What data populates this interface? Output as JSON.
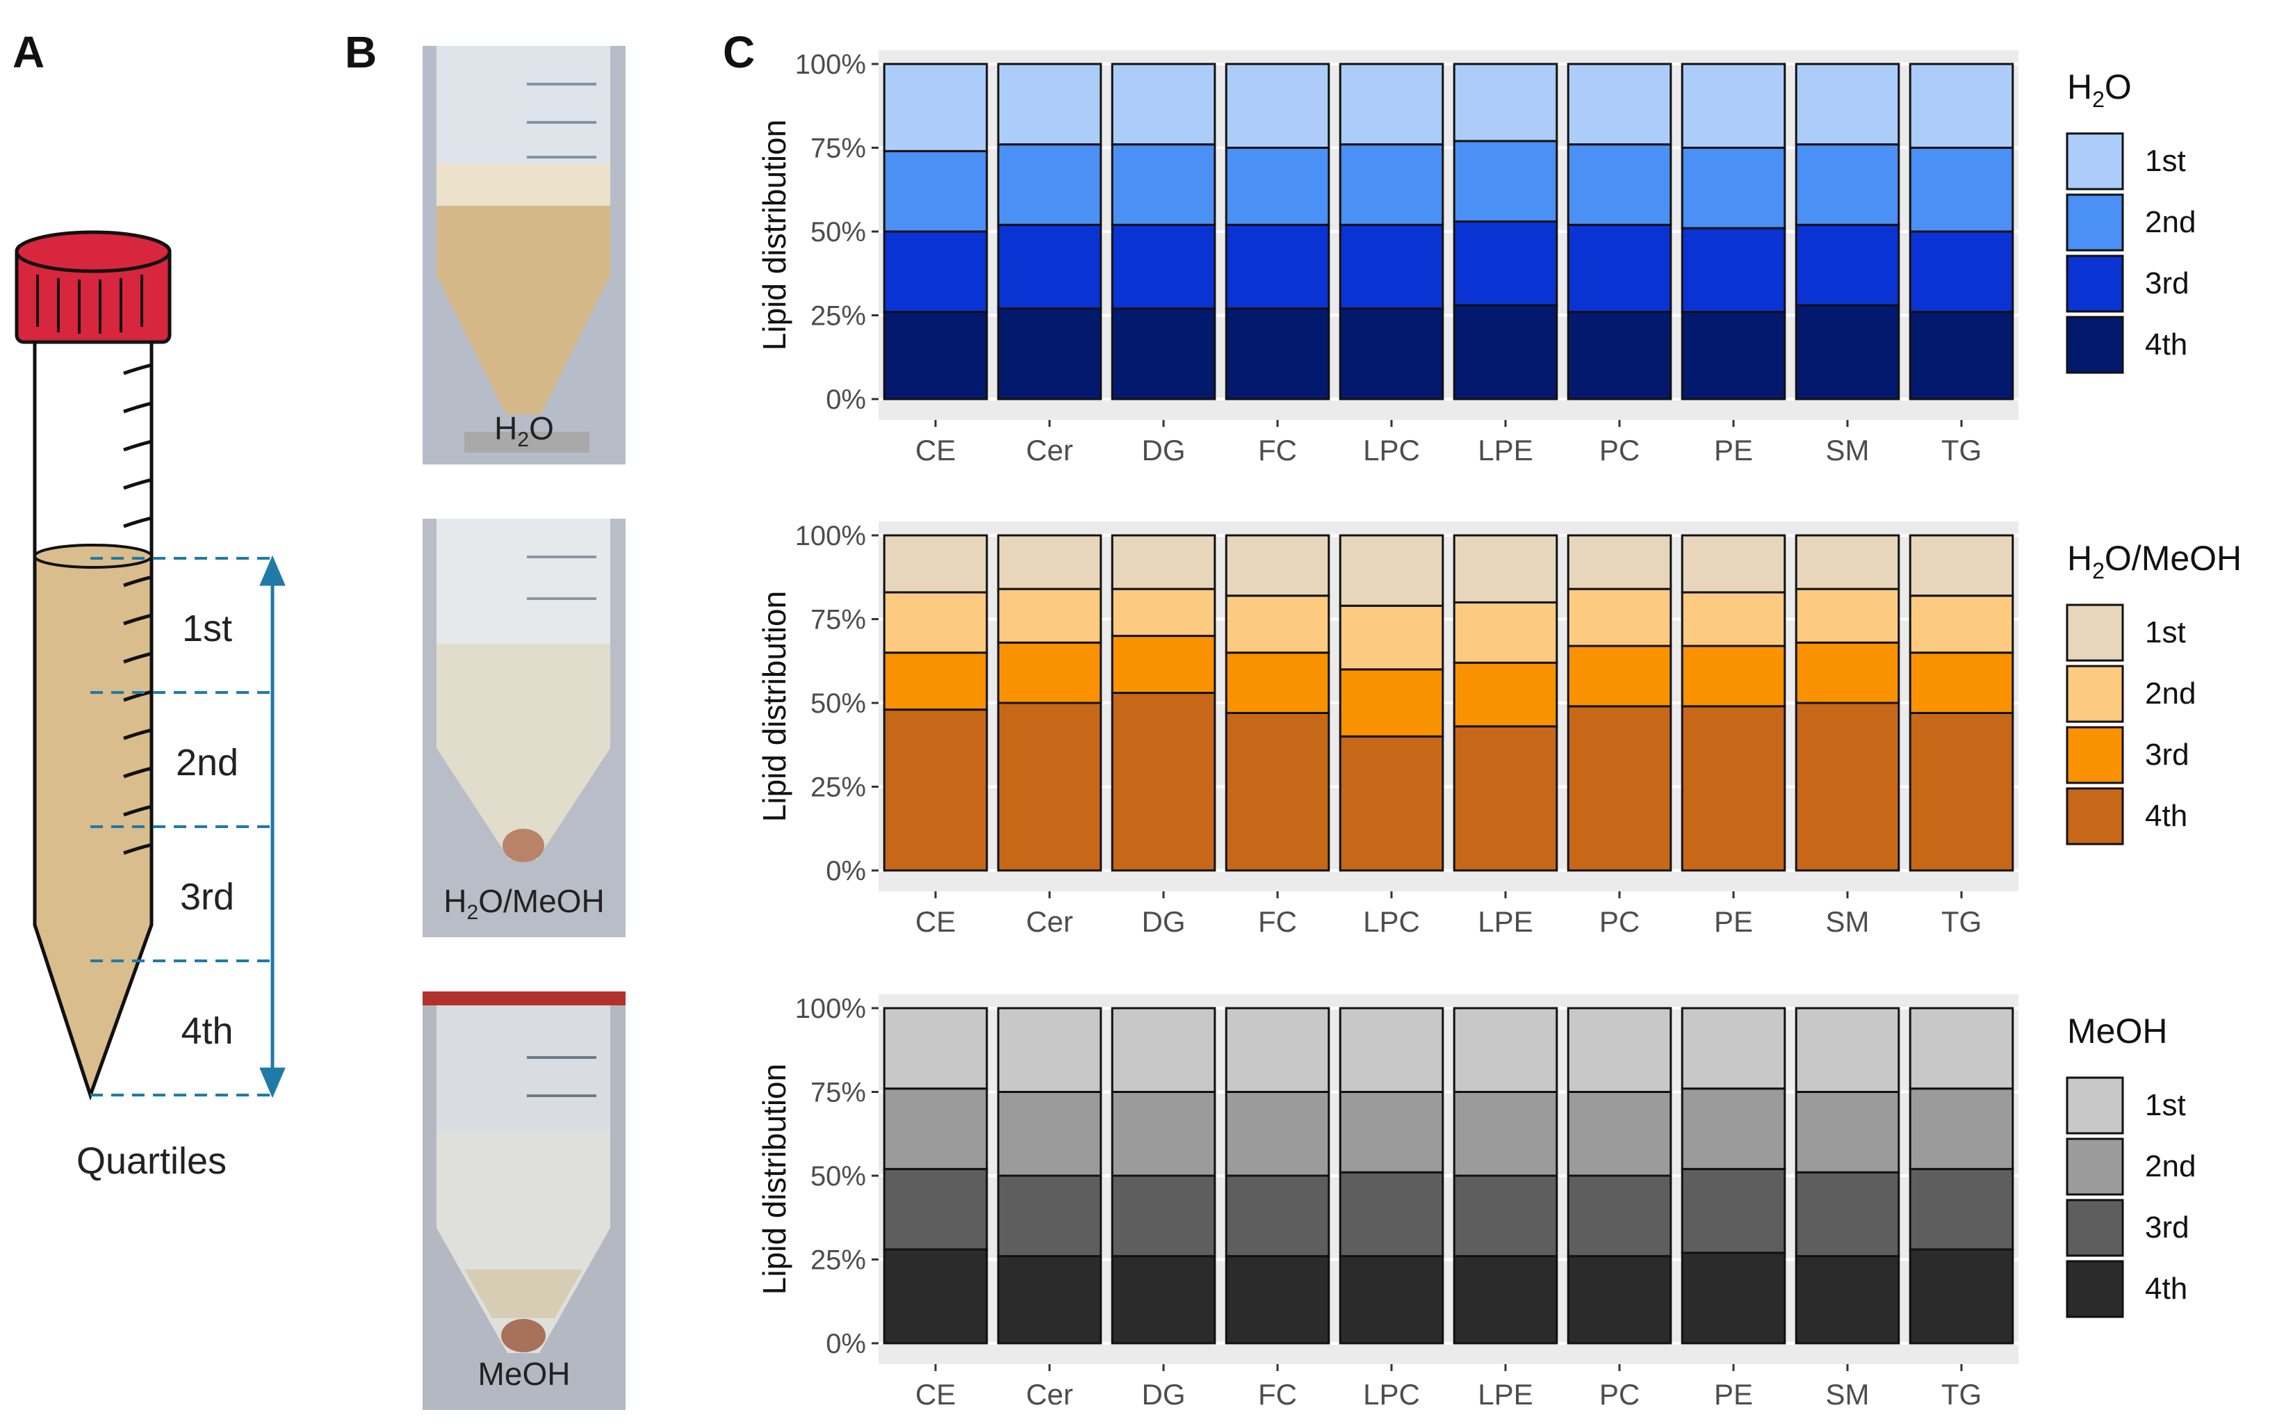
{
  "panels": {
    "a": "A",
    "b": "B",
    "c": "C"
  },
  "panel_a": {
    "quartiles": [
      "1st",
      "2nd",
      "3rd",
      "4th"
    ],
    "caption": "Quartiles",
    "colors": {
      "cap": "#d7263d",
      "liquid": "#d9bd8c",
      "arrow": "#1f7aa8"
    }
  },
  "panel_b": {
    "photos": [
      {
        "label_main": "H",
        "label_sub": "2",
        "label_rest": "O",
        "bg": "#c9b48f"
      },
      {
        "label_main": "H",
        "label_sub": "2",
        "label_rest": "O/MeOH",
        "bg": "#d8d2bd"
      },
      {
        "label_main": "MeOH",
        "label_sub": "",
        "label_rest": "",
        "bg": "#c8c8c4"
      }
    ]
  },
  "chart_data": [
    {
      "type": "bar",
      "stacked": true,
      "categories": [
        "CE",
        "Cer",
        "DG",
        "FC",
        "LPC",
        "LPE",
        "PC",
        "PE",
        "SM",
        "TG"
      ],
      "ylabel": "Lipid distribution",
      "ylim": [
        0,
        100
      ],
      "yticks": [
        "0%",
        "25%",
        "50%",
        "75%",
        "100%"
      ],
      "legend_title_main": "H",
      "legend_title_sub": "2",
      "legend_title_rest": "O",
      "series": [
        {
          "name": "4th",
          "color": "#03196e",
          "values": [
            26,
            27,
            27,
            27,
            27,
            28,
            26,
            26,
            28,
            26
          ]
        },
        {
          "name": "3rd",
          "color": "#0a33d4",
          "values": [
            24,
            25,
            25,
            25,
            25,
            25,
            26,
            25,
            24,
            24
          ]
        },
        {
          "name": "2nd",
          "color": "#4a90f5",
          "values": [
            24,
            24,
            24,
            23,
            24,
            24,
            24,
            24,
            24,
            25
          ]
        },
        {
          "name": "1st",
          "color": "#accdfa",
          "values": [
            26,
            24,
            24,
            25,
            24,
            23,
            24,
            25,
            24,
            25
          ]
        }
      ],
      "legend_order": [
        "1st",
        "2nd",
        "3rd",
        "4th"
      ]
    },
    {
      "type": "bar",
      "stacked": true,
      "categories": [
        "CE",
        "Cer",
        "DG",
        "FC",
        "LPC",
        "LPE",
        "PC",
        "PE",
        "SM",
        "TG"
      ],
      "ylabel": "Lipid distribution",
      "ylim": [
        0,
        100
      ],
      "yticks": [
        "0%",
        "25%",
        "50%",
        "75%",
        "100%"
      ],
      "legend_title_main": "H",
      "legend_title_sub": "2",
      "legend_title_rest": "O/MeOH",
      "series": [
        {
          "name": "4th",
          "color": "#c76818",
          "values": [
            48,
            50,
            53,
            47,
            40,
            43,
            49,
            49,
            50,
            47
          ]
        },
        {
          "name": "3rd",
          "color": "#fa9200",
          "values": [
            17,
            18,
            17,
            18,
            20,
            19,
            18,
            18,
            18,
            18
          ]
        },
        {
          "name": "2nd",
          "color": "#fccb80",
          "values": [
            18,
            16,
            14,
            17,
            19,
            18,
            17,
            16,
            16,
            17
          ]
        },
        {
          "name": "1st",
          "color": "#e7d6bb",
          "values": [
            17,
            16,
            16,
            18,
            21,
            20,
            16,
            17,
            16,
            18
          ]
        }
      ],
      "legend_order": [
        "1st",
        "2nd",
        "3rd",
        "4th"
      ]
    },
    {
      "type": "bar",
      "stacked": true,
      "categories": [
        "CE",
        "Cer",
        "DG",
        "FC",
        "LPC",
        "LPE",
        "PC",
        "PE",
        "SM",
        "TG"
      ],
      "ylabel": "Lipid distribution",
      "ylim": [
        0,
        100
      ],
      "yticks": [
        "0%",
        "25%",
        "50%",
        "75%",
        "100%"
      ],
      "legend_title_main": "MeOH",
      "legend_title_sub": "",
      "legend_title_rest": "",
      "series": [
        {
          "name": "4th",
          "color": "#2b2b2b",
          "values": [
            28,
            26,
            26,
            26,
            26,
            26,
            26,
            27,
            26,
            28
          ]
        },
        {
          "name": "3rd",
          "color": "#5e5e5e",
          "values": [
            24,
            24,
            24,
            24,
            25,
            24,
            24,
            25,
            25,
            24
          ]
        },
        {
          "name": "2nd",
          "color": "#9b9b9b",
          "values": [
            24,
            25,
            25,
            25,
            24,
            25,
            25,
            24,
            24,
            24
          ]
        },
        {
          "name": "1st",
          "color": "#c8c8c8",
          "values": [
            24,
            25,
            25,
            25,
            25,
            25,
            25,
            24,
            25,
            24
          ]
        }
      ],
      "legend_order": [
        "1st",
        "2nd",
        "3rd",
        "4th"
      ]
    }
  ]
}
